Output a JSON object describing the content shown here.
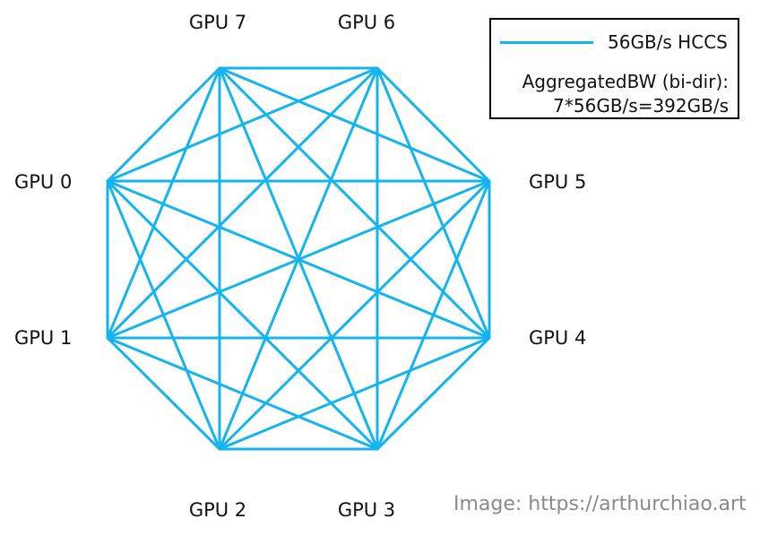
{
  "diagram": {
    "nodes": [
      {
        "id": "gpu0",
        "label": "GPU 0"
      },
      {
        "id": "gpu1",
        "label": "GPU 1"
      },
      {
        "id": "gpu2",
        "label": "GPU 2"
      },
      {
        "id": "gpu3",
        "label": "GPU 3"
      },
      {
        "id": "gpu4",
        "label": "GPU 4"
      },
      {
        "id": "gpu5",
        "label": "GPU 5"
      },
      {
        "id": "gpu6",
        "label": "GPU 6"
      },
      {
        "id": "gpu7",
        "label": "GPU 7"
      }
    ],
    "topology": "full-mesh",
    "link_color": "#14b4ee"
  },
  "legend": {
    "link_label": "56GB/s HCCS",
    "agg_line1": "AggregatedBW (bi-dir):",
    "agg_line2": "7*56GB/s=392GB/s"
  },
  "credit": "Image: https://arthurchiao.art"
}
